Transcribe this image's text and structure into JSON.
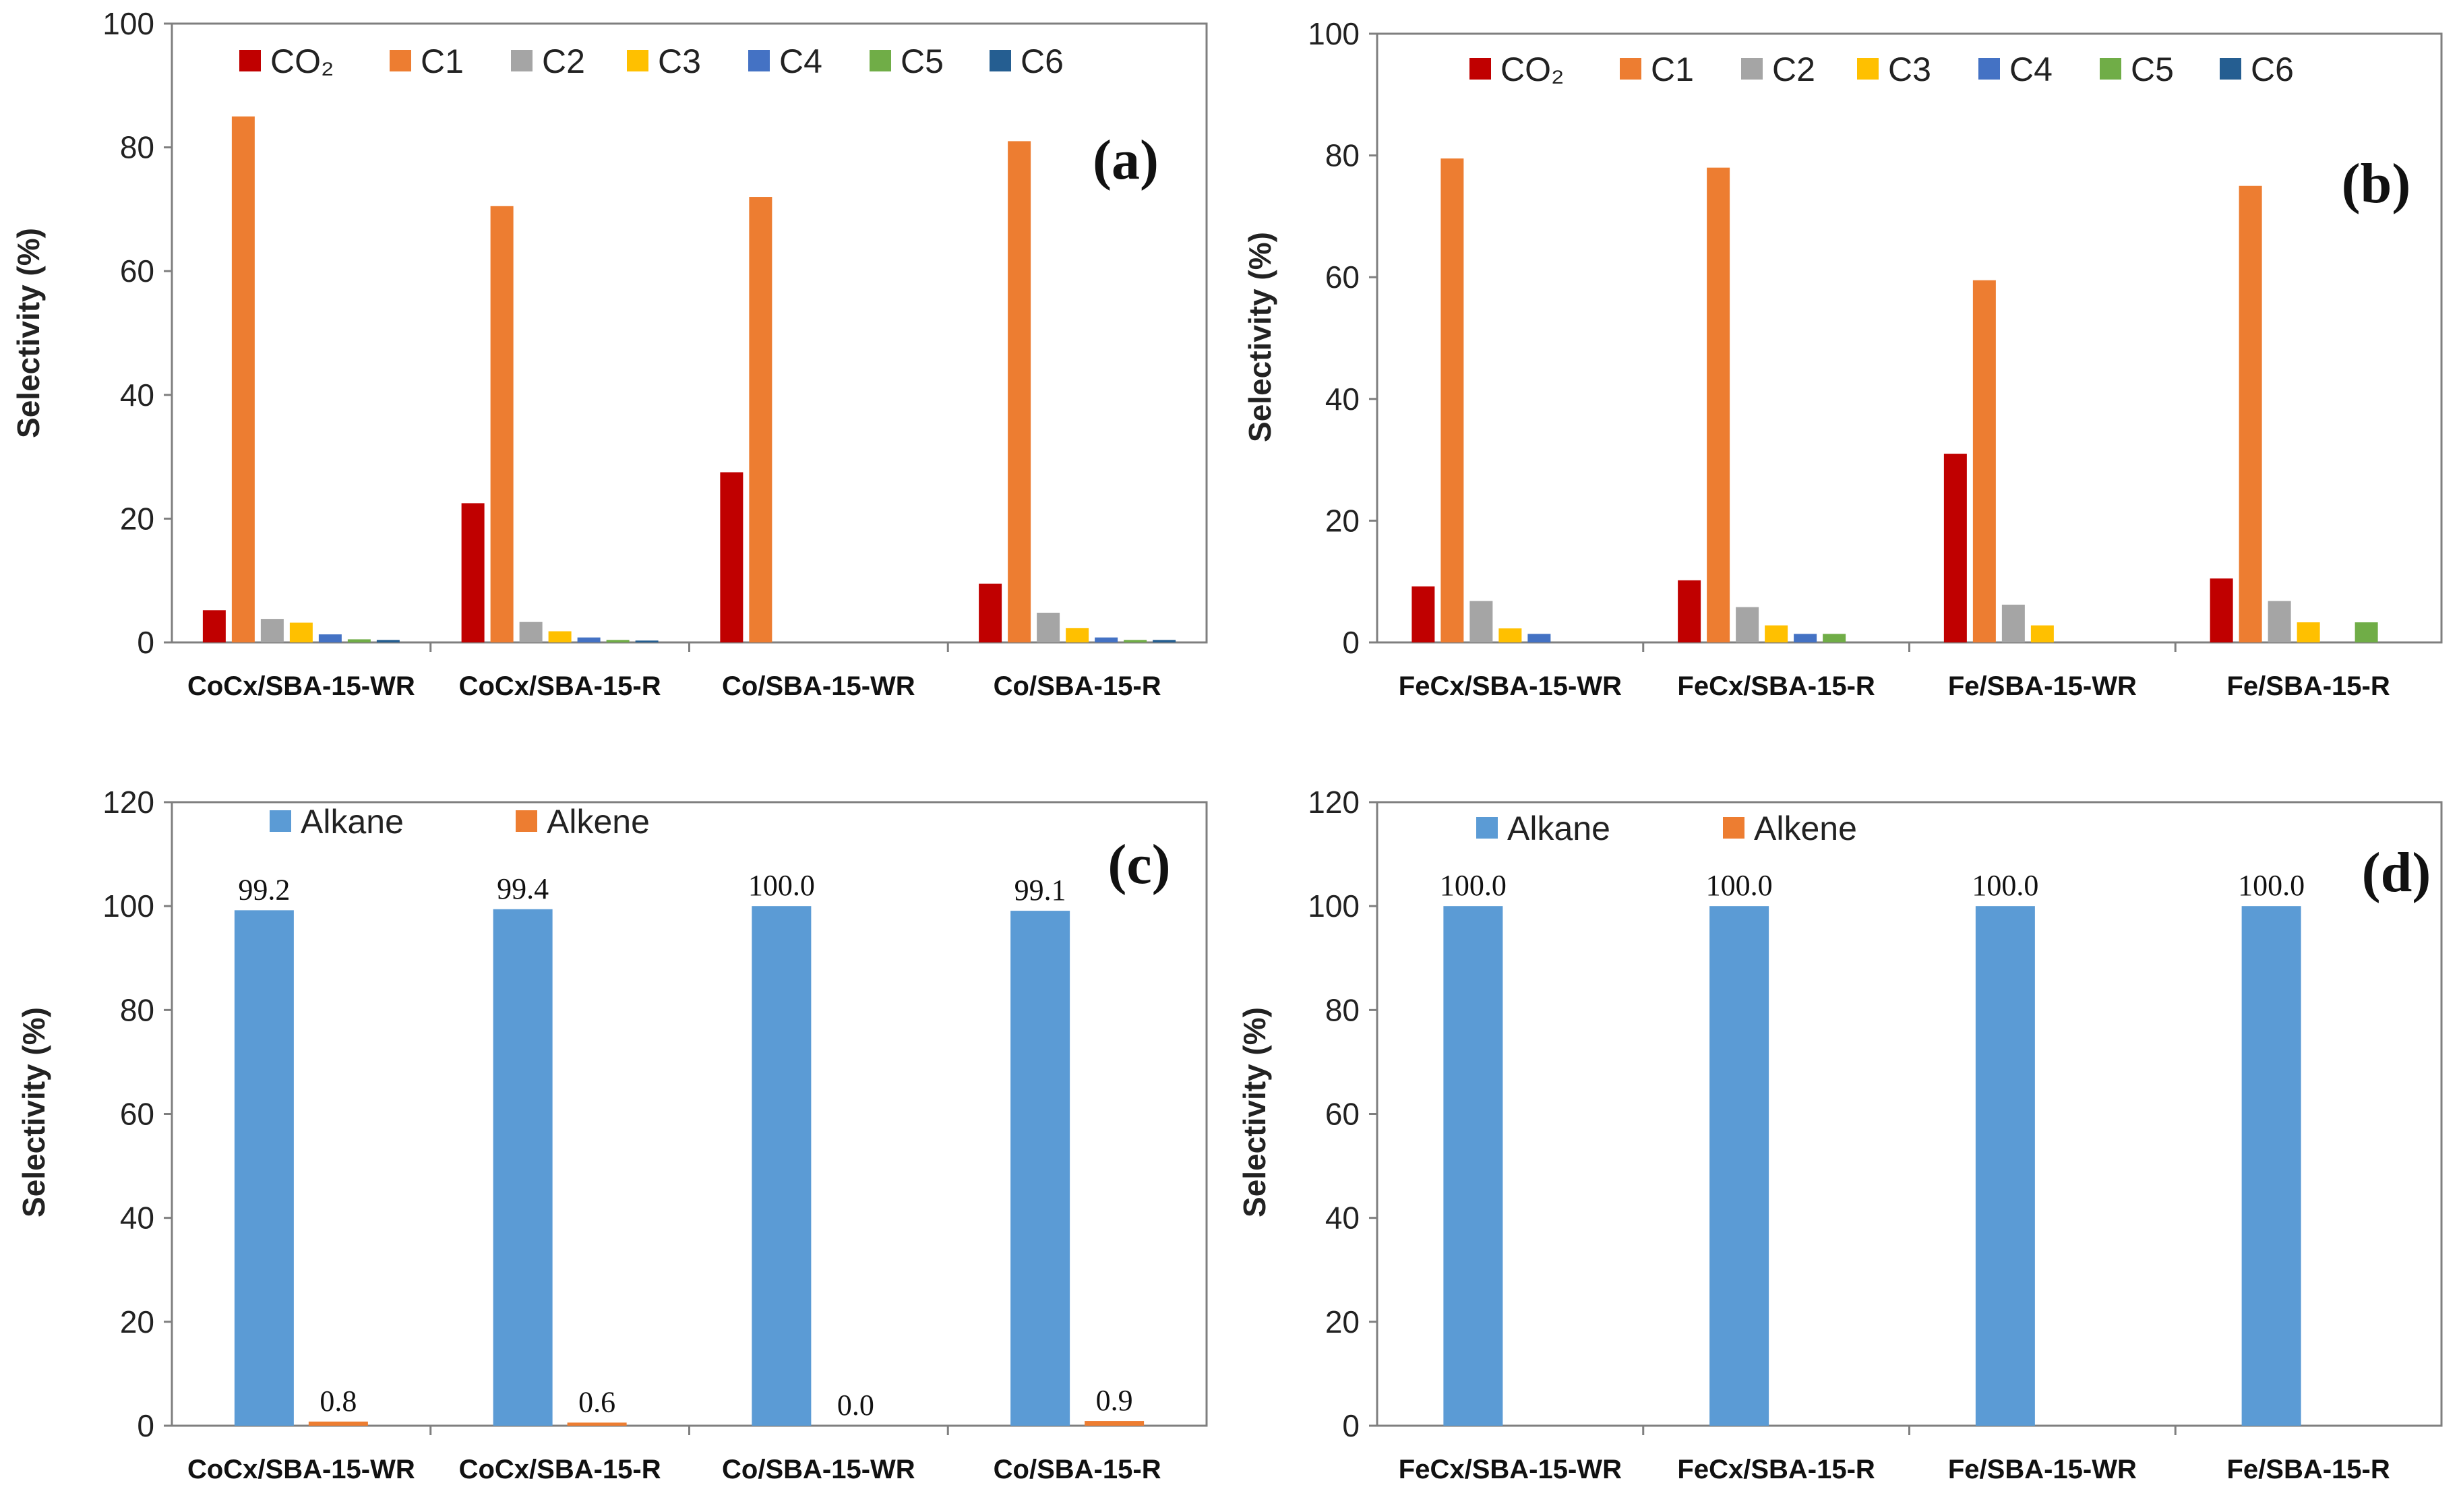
{
  "chart_data": [
    {
      "id": "a",
      "type": "bar",
      "panel_label": "(a)",
      "ylabel": "Selectivity (%)",
      "ylim": [
        0,
        100
      ],
      "yticks": [
        0,
        20,
        40,
        60,
        80,
        100
      ],
      "legend_position": "top",
      "categories": [
        "CoCx/SBA-15-WR",
        "CoCx/SBA-15-R",
        "Co/SBA-15-WR",
        "Co/SBA-15-R"
      ],
      "series": [
        {
          "name": "CO₂",
          "color": "#C00000",
          "values": [
            5.2,
            22.5,
            27.5,
            9.5
          ]
        },
        {
          "name": "C1",
          "color": "#ED7D31",
          "values": [
            85.0,
            70.5,
            72.0,
            81.0
          ]
        },
        {
          "name": "C2",
          "color": "#A5A5A5",
          "values": [
            3.8,
            3.3,
            0,
            4.8
          ]
        },
        {
          "name": "C3",
          "color": "#FFC000",
          "values": [
            3.2,
            1.8,
            0,
            2.3
          ]
        },
        {
          "name": "C4",
          "color": "#4472C4",
          "values": [
            1.3,
            0.8,
            0,
            0.8
          ]
        },
        {
          "name": "C5",
          "color": "#70AD47",
          "values": [
            0.5,
            0.4,
            0,
            0.4
          ]
        },
        {
          "name": "C6",
          "color": "#255E91",
          "values": [
            0.4,
            0.3,
            0,
            0.4
          ]
        }
      ]
    },
    {
      "id": "b",
      "type": "bar",
      "panel_label": "(b)",
      "ylabel": "Selectivity (%)",
      "ylim": [
        0,
        100
      ],
      "yticks": [
        0,
        20,
        40,
        60,
        80,
        100
      ],
      "legend_position": "top",
      "categories": [
        "FeCx/SBA-15-WR",
        "FeCx/SBA-15-R",
        "Fe/SBA-15-WR",
        "Fe/SBA-15-R"
      ],
      "series": [
        {
          "name": "CO₂",
          "color": "#C00000",
          "values": [
            9.2,
            10.2,
            31.0,
            10.5
          ]
        },
        {
          "name": "C1",
          "color": "#ED7D31",
          "values": [
            79.5,
            78.0,
            59.5,
            75.0
          ]
        },
        {
          "name": "C2",
          "color": "#A5A5A5",
          "values": [
            6.8,
            5.8,
            6.2,
            6.8
          ]
        },
        {
          "name": "C3",
          "color": "#FFC000",
          "values": [
            2.3,
            2.8,
            2.8,
            3.3
          ]
        },
        {
          "name": "C4",
          "color": "#4472C4",
          "values": [
            1.4,
            1.4,
            0,
            0
          ]
        },
        {
          "name": "C5",
          "color": "#70AD47",
          "values": [
            0,
            1.4,
            0,
            3.3
          ]
        },
        {
          "name": "C6",
          "color": "#255E91",
          "values": [
            0,
            0,
            0,
            0
          ]
        }
      ]
    },
    {
      "id": "c",
      "type": "bar",
      "panel_label": "(c)",
      "ylabel": "Selectivity (%)",
      "ylim": [
        0,
        120
      ],
      "yticks": [
        0,
        20,
        40,
        60,
        80,
        100,
        120
      ],
      "legend_position": "top",
      "categories": [
        "CoCx/SBA-15-WR",
        "CoCx/SBA-15-R",
        "Co/SBA-15-WR",
        "Co/SBA-15-R"
      ],
      "series": [
        {
          "name": "Alkane",
          "color": "#5B9BD5",
          "values": [
            99.2,
            99.4,
            100.0,
            99.1
          ],
          "labels": [
            "99.2",
            "99.4",
            "100.0",
            "99.1"
          ]
        },
        {
          "name": "Alkene",
          "color": "#ED7D31",
          "values": [
            0.8,
            0.6,
            0.0,
            0.9
          ],
          "labels": [
            "0.8",
            "0.6",
            "0.0",
            "0.9"
          ]
        }
      ]
    },
    {
      "id": "d",
      "type": "bar",
      "panel_label": "(d)",
      "ylabel": "Selectivity (%)",
      "ylim": [
        0,
        120
      ],
      "yticks": [
        0,
        20,
        40,
        60,
        80,
        100,
        120
      ],
      "legend_position": "top",
      "categories": [
        "FeCx/SBA-15-WR",
        "FeCx/SBA-15-R",
        "Fe/SBA-15-WR",
        "Fe/SBA-15-R"
      ],
      "series": [
        {
          "name": "Alkane",
          "color": "#5B9BD5",
          "values": [
            100.0,
            100.0,
            100.0,
            100.0
          ],
          "labels": [
            "100.0",
            "100.0",
            "100.0",
            "100.0"
          ]
        },
        {
          "name": "Alkene",
          "color": "#ED7D31",
          "values": [
            0,
            0,
            0,
            0
          ]
        }
      ]
    }
  ]
}
